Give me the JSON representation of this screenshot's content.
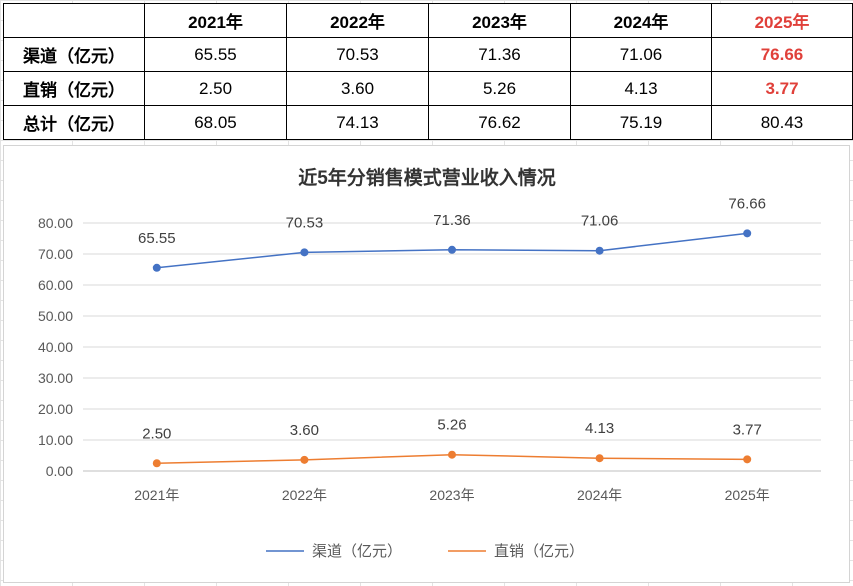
{
  "table": {
    "headers": [
      "",
      "2021年",
      "2022年",
      "2023年",
      "2024年",
      "2025年"
    ],
    "rows": [
      {
        "label": "渠道（亿元）",
        "values": [
          "65.55",
          "70.53",
          "71.36",
          "71.06",
          "76.66"
        ]
      },
      {
        "label": "直销（亿元）",
        "values": [
          "2.50",
          "3.60",
          "5.26",
          "4.13",
          "3.77"
        ]
      },
      {
        "label": "总计（亿元）",
        "values": [
          "68.05",
          "74.13",
          "76.62",
          "75.19",
          "80.43"
        ]
      }
    ],
    "highlight_color": "#e0403a"
  },
  "chart_data": {
    "type": "line",
    "title": "近5年分销售模式营业收入情况",
    "categories": [
      "2021年",
      "2022年",
      "2023年",
      "2024年",
      "2025年"
    ],
    "series": [
      {
        "name": "渠道（亿元）",
        "values": [
          65.55,
          70.53,
          71.36,
          71.06,
          76.66
        ],
        "labels": [
          "65.55",
          "70.53",
          "71.36",
          "71.06",
          "76.66"
        ],
        "color": "#4472c4"
      },
      {
        "name": "直销（亿元）",
        "values": [
          2.5,
          3.6,
          5.26,
          4.13,
          3.77
        ],
        "labels": [
          "2.50",
          "3.60",
          "5.26",
          "4.13",
          "3.77"
        ],
        "color": "#ed7d31"
      }
    ],
    "y_ticks": [
      "0.00",
      "10.00",
      "20.00",
      "30.00",
      "40.00",
      "50.00",
      "60.00",
      "70.00",
      "80.00"
    ],
    "ylim": [
      0,
      80
    ],
    "grid": true,
    "legend_position": "bottom"
  }
}
